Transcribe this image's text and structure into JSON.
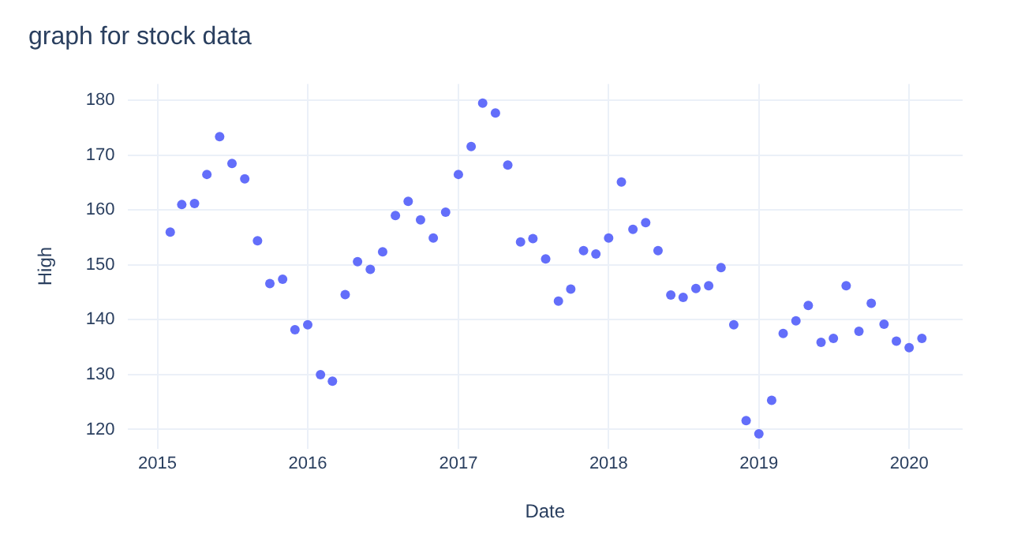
{
  "chart_data": {
    "type": "scatter",
    "title": "graph for stock data",
    "xlabel": "Date",
    "ylabel": "High",
    "x": [
      "2015-02",
      "2015-03",
      "2015-04",
      "2015-05",
      "2015-06",
      "2015-07",
      "2015-08",
      "2015-09",
      "2015-10",
      "2015-11",
      "2015-12",
      "2016-01",
      "2016-02",
      "2016-03",
      "2016-04",
      "2016-05",
      "2016-06",
      "2016-07",
      "2016-08",
      "2016-09",
      "2016-10",
      "2016-11",
      "2016-12",
      "2017-01",
      "2017-02",
      "2017-03",
      "2017-04",
      "2017-05",
      "2017-06",
      "2017-07",
      "2017-08",
      "2017-09",
      "2017-10",
      "2017-11",
      "2017-12",
      "2018-01",
      "2018-02",
      "2018-03",
      "2018-04",
      "2018-05",
      "2018-06",
      "2018-07",
      "2018-08",
      "2018-09",
      "2018-10",
      "2018-11",
      "2018-12",
      "2019-01",
      "2019-02",
      "2019-03",
      "2019-04",
      "2019-05",
      "2019-06",
      "2019-07",
      "2019-08",
      "2019-09",
      "2019-10",
      "2019-11",
      "2019-12",
      "2020-01",
      "2020-02"
    ],
    "series": [
      {
        "color": "#636efa",
        "values": [
          156,
          161,
          161.2,
          166.5,
          173.4,
          168.5,
          165.7,
          154.4,
          146.6,
          147.4,
          138.2,
          139.1,
          130,
          128.8,
          144.6,
          150.6,
          149.2,
          152.4,
          159,
          161.6,
          158.2,
          154.9,
          159.6,
          166.5,
          171.6,
          179.5,
          177.7,
          168.2,
          154.2,
          154.8,
          151.1,
          143.4,
          145.6,
          152.6,
          152,
          154.9,
          165.1,
          156.5,
          157.7,
          152.6,
          144.5,
          144.1,
          145.7,
          146.2,
          149.5,
          139.1,
          121.6,
          119.2,
          125.3,
          137.5,
          139.8,
          142.6,
          135.9,
          136.6,
          146.2,
          137.9,
          143,
          139.2,
          136.1,
          134.9,
          136.6
        ]
      }
    ],
    "xlim": [
      "2014-10-20",
      "2020-05-10"
    ],
    "xticks": [
      "2015",
      "2016",
      "2017",
      "2018",
      "2019",
      "2020"
    ],
    "ylim": [
      116.5,
      183
    ],
    "yticks": [
      120,
      130,
      140,
      150,
      160,
      170,
      180
    ],
    "grid": true,
    "legend": false,
    "marker": "circle"
  }
}
